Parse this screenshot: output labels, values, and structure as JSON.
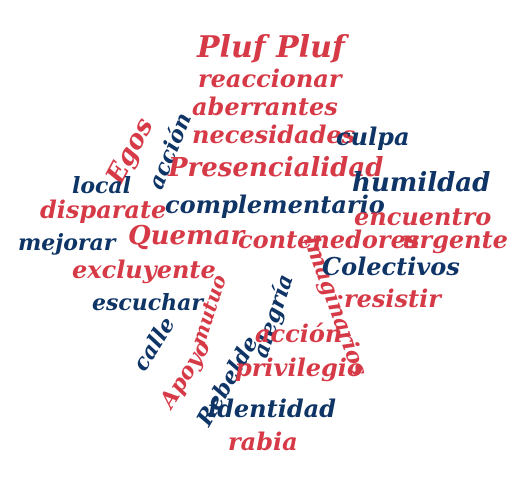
{
  "colors": {
    "red": "#d63a47",
    "blue": "#0f3466",
    "background": "#ffffff"
  },
  "words": {
    "pluf": "Pluf Pluf",
    "reaccionar": "reaccionar",
    "aberrantes": "aberrantes",
    "egos": "Egos",
    "accion_top": "acción",
    "necesidades": "necesidades",
    "culpa": "culpa",
    "presencialidad": "Presencialidad",
    "local": "local",
    "humildad": "humildad",
    "disparate": "disparate",
    "complementario": "complementario",
    "encuentro": "encuentro",
    "mejorar": "mejorar",
    "quemar": "Quemar",
    "contenedores": "contenedores",
    "urgente": "urgente",
    "excluyente": "excluyente",
    "mutuo": "mutuo",
    "alegria": "alegría",
    "imaginarios": "imaginarios",
    "colectivos": "Colectivos",
    "escuchar": "escuchar",
    "resistir": "resistir",
    "calle": "calle",
    "apoyo": "Apoyo",
    "rebelde": "Rebelde",
    "accion_mid": "acción",
    "privilegio": "privilegio",
    "identidad": "identidad",
    "rabia": "rabia"
  }
}
